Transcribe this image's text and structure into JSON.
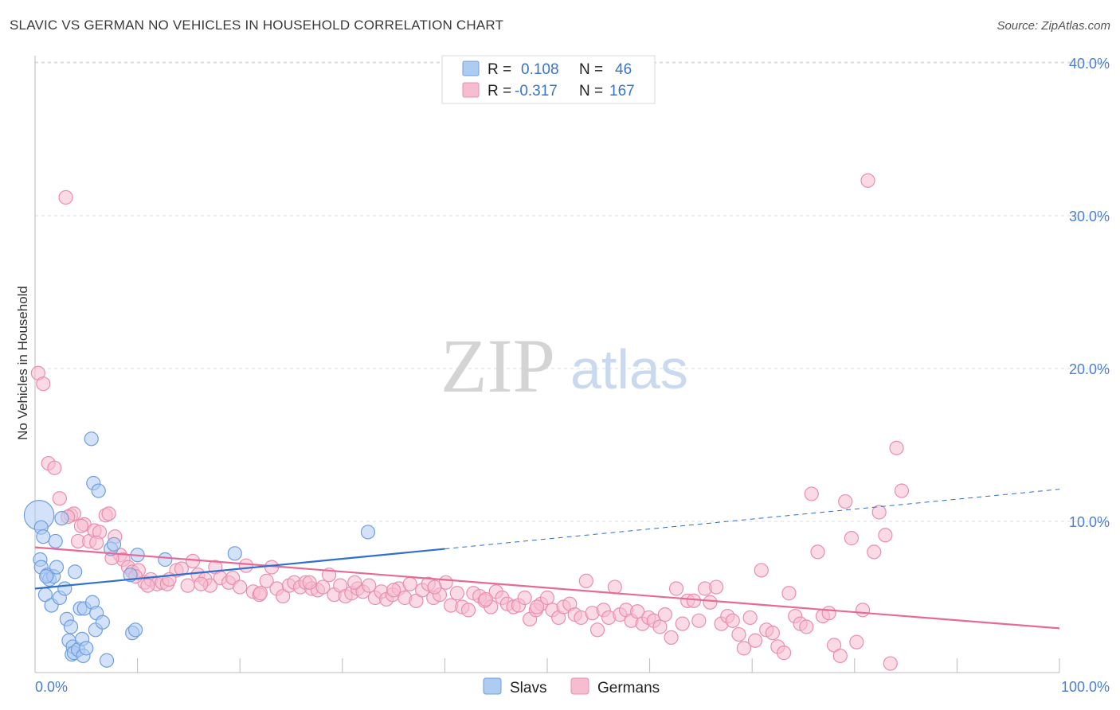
{
  "header": {
    "title": "SLAVIC VS GERMAN NO VEHICLES IN HOUSEHOLD CORRELATION CHART",
    "source": "Source: ZipAtlas.com"
  },
  "watermark": {
    "zip": "ZIP",
    "atlas": "atlas"
  },
  "colors": {
    "slavs_fill": "#aecbf2",
    "slavs_stroke": "#6f9fde",
    "slavs_line": "#2f6fd0",
    "germans_fill": "#f6bcd0",
    "germans_stroke": "#ea8eae",
    "germans_line": "#e66a97",
    "grid": "#dddddd",
    "axis_text": "#4a7fd0"
  },
  "legend_top": {
    "rows": [
      {
        "r_label": "R =",
        "r_value": "0.108",
        "n_label": "N =",
        "n_value": "46"
      },
      {
        "r_label": "R =",
        "r_value": "-0.317",
        "n_label": "N =",
        "n_value": "167"
      }
    ]
  },
  "chart_data": {
    "type": "scatter",
    "title": "SLAVIC VS GERMAN NO VEHICLES IN HOUSEHOLD CORRELATION CHART",
    "xlabel": "",
    "ylabel": "No Vehicles in Household",
    "xlim": [
      0,
      100
    ],
    "ylim": [
      0,
      42
    ],
    "x_tick_labels": [
      "0.0%",
      "100.0%"
    ],
    "y_ticks": [
      10,
      20,
      30,
      40
    ],
    "y_tick_labels": [
      "10.0%",
      "20.0%",
      "30.0%",
      "40.0%"
    ],
    "grid": true,
    "legend_position": "bottom-center",
    "series": [
      {
        "name": "Slavs",
        "r": 0.108,
        "n": 46,
        "trend": {
          "x0": 0,
          "y0": 5.6,
          "x1": 40,
          "y1": 8.2,
          "dashed_to_x": 100,
          "dashed_to_y": 12.1
        },
        "points": [
          [
            0.4,
            10.4,
            2.2
          ],
          [
            0.6,
            9.6,
            1
          ],
          [
            0.8,
            9.0,
            1
          ],
          [
            0.5,
            7.5,
            1
          ],
          [
            0.6,
            7.0,
            1
          ],
          [
            1.2,
            6.5,
            1
          ],
          [
            1.4,
            6.2,
            1
          ],
          [
            1.8,
            6.4,
            1
          ],
          [
            1.0,
            5.2,
            1
          ],
          [
            1.6,
            4.5,
            1
          ],
          [
            2.0,
            8.7,
            1
          ],
          [
            2.1,
            7.0,
            1
          ],
          [
            2.4,
            5.0,
            1
          ],
          [
            2.6,
            10.2,
            1
          ],
          [
            2.9,
            5.6,
            1
          ],
          [
            3.1,
            3.6,
            1
          ],
          [
            3.3,
            2.2,
            1
          ],
          [
            3.5,
            3.1,
            1
          ],
          [
            3.6,
            1.3,
            1
          ],
          [
            3.7,
            1.8,
            1
          ],
          [
            3.8,
            1.4,
            1
          ],
          [
            3.9,
            6.7,
            1
          ],
          [
            4.2,
            1.6,
            1
          ],
          [
            4.4,
            4.3,
            1
          ],
          [
            4.6,
            2.3,
            1
          ],
          [
            4.7,
            1.2,
            1
          ],
          [
            4.8,
            4.3,
            1
          ],
          [
            5.0,
            1.7,
            1
          ],
          [
            5.5,
            15.4,
            1
          ],
          [
            5.6,
            4.7,
            1
          ],
          [
            5.7,
            12.5,
            1
          ],
          [
            5.9,
            2.9,
            1
          ],
          [
            6.0,
            4.0,
            1
          ],
          [
            6.2,
            12.0,
            1
          ],
          [
            6.6,
            3.4,
            1
          ],
          [
            7.0,
            0.9,
            1
          ],
          [
            7.4,
            8.2,
            1
          ],
          [
            7.7,
            8.5,
            1
          ],
          [
            9.3,
            6.5,
            1
          ],
          [
            9.5,
            2.7,
            1
          ],
          [
            9.8,
            2.9,
            1
          ],
          [
            10.0,
            7.8,
            1
          ],
          [
            12.7,
            7.5,
            1
          ],
          [
            19.5,
            7.9,
            1
          ],
          [
            32.5,
            9.3,
            1
          ],
          [
            1.1,
            6.4,
            1
          ]
        ]
      },
      {
        "name": "Germans",
        "r": -0.317,
        "n": 167,
        "trend": {
          "x0": 0,
          "y0": 8.3,
          "x1": 100,
          "y1": 3.0
        },
        "points": [
          [
            0.3,
            19.7
          ],
          [
            0.8,
            19.0
          ],
          [
            3.0,
            31.2
          ],
          [
            1.3,
            13.8
          ],
          [
            1.9,
            13.5
          ],
          [
            2.4,
            11.5
          ],
          [
            3.5,
            10.4
          ],
          [
            3.8,
            10.5
          ],
          [
            4.2,
            8.7
          ],
          [
            4.8,
            9.8
          ],
          [
            5.3,
            8.7
          ],
          [
            5.8,
            9.4
          ],
          [
            6.3,
            9.3
          ],
          [
            6.9,
            10.4
          ],
          [
            7.2,
            10.5
          ],
          [
            7.8,
            9.0
          ],
          [
            8.3,
            7.8
          ],
          [
            8.6,
            7.5
          ],
          [
            9.1,
            7.0
          ],
          [
            9.5,
            6.7
          ],
          [
            10.1,
            6.8
          ],
          [
            10.7,
            6.0
          ],
          [
            11.3,
            6.2
          ],
          [
            11.9,
            5.9
          ],
          [
            12.4,
            6.0
          ],
          [
            12.9,
            5.9
          ],
          [
            13.8,
            6.8
          ],
          [
            14.3,
            6.9
          ],
          [
            14.9,
            5.8
          ],
          [
            15.4,
            7.4
          ],
          [
            15.9,
            6.5
          ],
          [
            16.6,
            6.2
          ],
          [
            17.1,
            5.8
          ],
          [
            17.6,
            7.0
          ],
          [
            18.1,
            6.3
          ],
          [
            18.9,
            6.0
          ],
          [
            19.3,
            6.3
          ],
          [
            20.0,
            5.7
          ],
          [
            20.6,
            7.1
          ],
          [
            21.3,
            5.4
          ],
          [
            21.9,
            5.2
          ],
          [
            22.6,
            6.1
          ],
          [
            23.1,
            7.0
          ],
          [
            23.6,
            5.6
          ],
          [
            24.2,
            5.1
          ],
          [
            24.8,
            5.8
          ],
          [
            25.3,
            6.0
          ],
          [
            25.9,
            5.7
          ],
          [
            26.4,
            6.0
          ],
          [
            27.0,
            5.6
          ],
          [
            27.6,
            5.5
          ],
          [
            28.1,
            5.7
          ],
          [
            28.7,
            6.5
          ],
          [
            29.2,
            5.2
          ],
          [
            29.8,
            5.8
          ],
          [
            30.3,
            5.1
          ],
          [
            30.9,
            5.3
          ],
          [
            31.5,
            5.6
          ],
          [
            32.0,
            5.4
          ],
          [
            32.6,
            5.8
          ],
          [
            33.2,
            5.0
          ],
          [
            33.8,
            5.4
          ],
          [
            34.3,
            4.9
          ],
          [
            34.9,
            5.2
          ],
          [
            35.5,
            5.6
          ],
          [
            36.1,
            5.0
          ],
          [
            36.6,
            5.9
          ],
          [
            37.2,
            4.8
          ],
          [
            37.8,
            5.5
          ],
          [
            38.4,
            5.9
          ],
          [
            38.9,
            5.0
          ],
          [
            39.5,
            5.2
          ],
          [
            40.1,
            6.0
          ],
          [
            40.6,
            4.5
          ],
          [
            41.2,
            5.3
          ],
          [
            41.7,
            4.4
          ],
          [
            42.3,
            4.2
          ],
          [
            42.8,
            5.3
          ],
          [
            43.4,
            5.1
          ],
          [
            43.9,
            4.8
          ],
          [
            44.5,
            4.4
          ],
          [
            45.0,
            5.4
          ],
          [
            45.6,
            5.0
          ],
          [
            46.1,
            4.6
          ],
          [
            46.7,
            4.4
          ],
          [
            47.2,
            4.5
          ],
          [
            47.8,
            5.0
          ],
          [
            48.3,
            3.6
          ],
          [
            48.9,
            4.2
          ],
          [
            49.4,
            4.6
          ],
          [
            50.0,
            5.0
          ],
          [
            50.5,
            4.2
          ],
          [
            51.1,
            3.7
          ],
          [
            51.6,
            4.4
          ],
          [
            52.2,
            4.6
          ],
          [
            52.7,
            3.9
          ],
          [
            53.3,
            3.7
          ],
          [
            53.8,
            6.1
          ],
          [
            54.4,
            4.0
          ],
          [
            54.9,
            2.9
          ],
          [
            55.5,
            4.2
          ],
          [
            56.0,
            3.7
          ],
          [
            56.6,
            5.7
          ],
          [
            57.1,
            3.9
          ],
          [
            57.7,
            4.2
          ],
          [
            58.2,
            3.5
          ],
          [
            58.8,
            4.1
          ],
          [
            59.3,
            3.3
          ],
          [
            59.9,
            3.7
          ],
          [
            60.4,
            3.5
          ],
          [
            61.0,
            3.1
          ],
          [
            61.5,
            3.9
          ],
          [
            62.1,
            2.4
          ],
          [
            62.6,
            5.6
          ],
          [
            63.2,
            3.3
          ],
          [
            63.7,
            4.8
          ],
          [
            64.3,
            4.8
          ],
          [
            64.8,
            3.5
          ],
          [
            65.4,
            5.6
          ],
          [
            65.9,
            4.7
          ],
          [
            66.5,
            5.7
          ],
          [
            67.0,
            3.3
          ],
          [
            67.6,
            3.8
          ],
          [
            68.1,
            3.5
          ],
          [
            68.7,
            2.6
          ],
          [
            69.2,
            1.7
          ],
          [
            69.8,
            3.7
          ],
          [
            70.3,
            2.2
          ],
          [
            70.9,
            6.8
          ],
          [
            71.4,
            2.9
          ],
          [
            72.0,
            2.7
          ],
          [
            72.5,
            1.8
          ],
          [
            73.1,
            1.4
          ],
          [
            73.6,
            5.3
          ],
          [
            74.2,
            3.8
          ],
          [
            74.7,
            3.3
          ],
          [
            75.3,
            3.1
          ],
          [
            75.8,
            11.8
          ],
          [
            76.4,
            8.0
          ],
          [
            76.9,
            3.8
          ],
          [
            77.5,
            4.0
          ],
          [
            78.0,
            1.9
          ],
          [
            78.6,
            1.2
          ],
          [
            79.1,
            11.3
          ],
          [
            79.7,
            8.9
          ],
          [
            80.2,
            2.1
          ],
          [
            80.8,
            4.2
          ],
          [
            81.3,
            32.3
          ],
          [
            81.9,
            8.0
          ],
          [
            82.4,
            10.6
          ],
          [
            83.0,
            9.1
          ],
          [
            83.5,
            0.7
          ],
          [
            84.1,
            14.8
          ],
          [
            84.6,
            12.0
          ],
          [
            3.2,
            10.3
          ],
          [
            4.5,
            9.7
          ],
          [
            6.0,
            8.6
          ],
          [
            7.5,
            7.6
          ],
          [
            9.8,
            6.4
          ],
          [
            11.0,
            5.8
          ],
          [
            13.1,
            6.2
          ],
          [
            16.2,
            5.9
          ],
          [
            22.0,
            5.3
          ],
          [
            26.8,
            6.0
          ],
          [
            31.2,
            6.0
          ],
          [
            35.0,
            5.5
          ],
          [
            39.0,
            5.7
          ],
          [
            44.0,
            4.9
          ],
          [
            49.0,
            4.4
          ]
        ]
      }
    ]
  },
  "legend_bottom": {
    "items": [
      {
        "label": "Slavs"
      },
      {
        "label": "Germans"
      }
    ]
  }
}
